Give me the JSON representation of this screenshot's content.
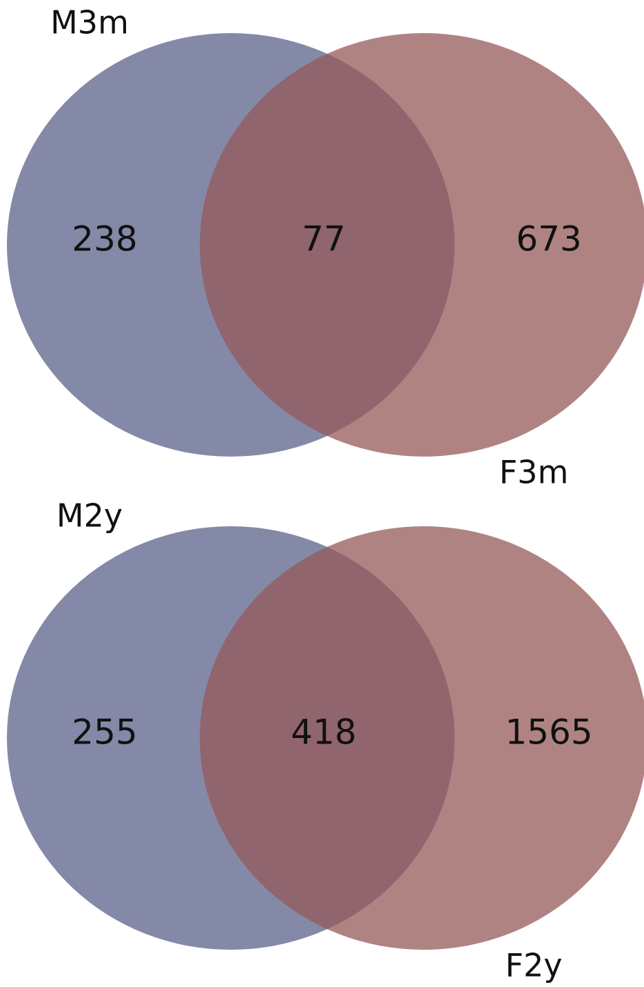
{
  "chart_data": [
    {
      "type": "venn",
      "sets": [
        {
          "name": "M3m",
          "color": "#5b628b"
        },
        {
          "name": "F3m",
          "color": "#965a5a"
        }
      ],
      "values": [
        238,
        77,
        673
      ]
    },
    {
      "type": "venn",
      "sets": [
        {
          "name": "M2y",
          "color": "#5b628b"
        },
        {
          "name": "F2y",
          "color": "#965a5a"
        }
      ],
      "values": [
        255,
        418,
        1565
      ]
    }
  ]
}
